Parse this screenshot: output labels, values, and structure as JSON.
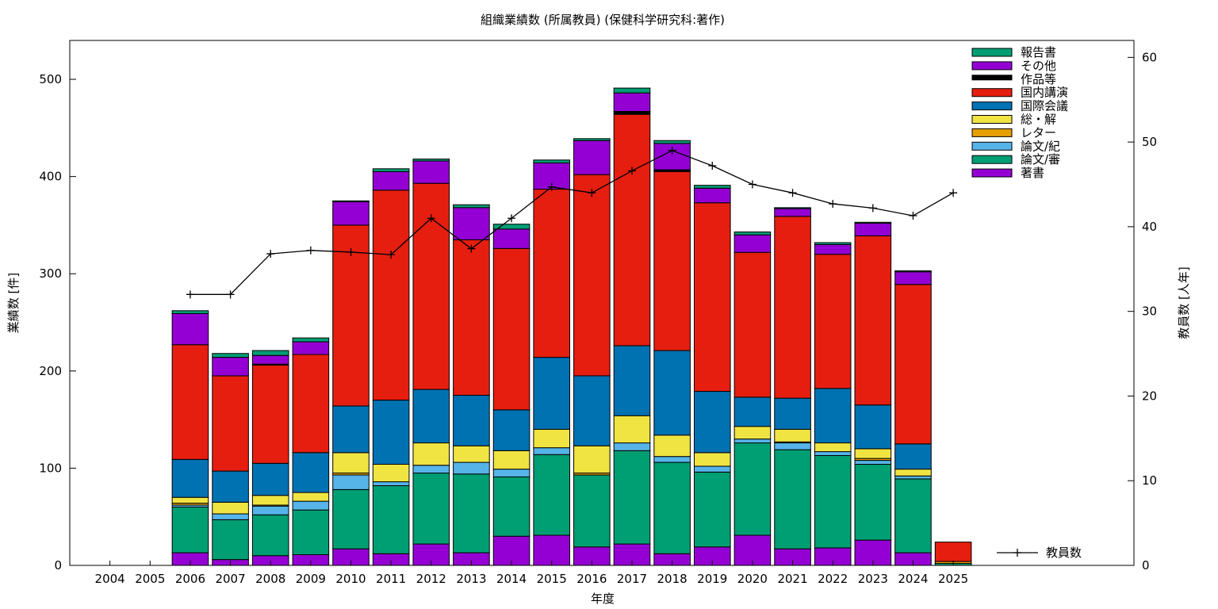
{
  "chart_data": {
    "type": "bar",
    "stacked": true,
    "title": "組織業績数 (所属教員) (保健科学研究科:著作)",
    "xlabel": "年度",
    "ylabel": "業績数 [件]",
    "y2label": "教員数 [人年]",
    "ylim": [
      0,
      540
    ],
    "y2lim": [
      0,
      62
    ],
    "yticks": [
      "0",
      "100",
      "200",
      "300",
      "400",
      "500"
    ],
    "y2ticks": [
      "0",
      "10",
      "20",
      "30",
      "40",
      "50",
      "60"
    ],
    "categories": [
      "2004",
      "2005",
      "2006",
      "2007",
      "2008",
      "2009",
      "2010",
      "2011",
      "2012",
      "2013",
      "2014",
      "2015",
      "2016",
      "2017",
      "2018",
      "2019",
      "2020",
      "2021",
      "2022",
      "2023",
      "2024",
      "2025"
    ],
    "legend_position": "top-right",
    "series": [
      {
        "name": "著書",
        "color": "#9400d3",
        "values": [
          0,
          0,
          13,
          6,
          10,
          11,
          17,
          12,
          22,
          13,
          30,
          31,
          19,
          22,
          12,
          19,
          31,
          17,
          18,
          26,
          13,
          0
        ]
      },
      {
        "name": "論文/審",
        "color": "#009e73",
        "values": [
          0,
          0,
          47,
          41,
          42,
          46,
          61,
          70,
          73,
          81,
          61,
          83,
          74,
          96,
          94,
          77,
          95,
          102,
          95,
          78,
          76,
          2
        ]
      },
      {
        "name": "論文/紀",
        "color": "#56b4e9",
        "values": [
          0,
          0,
          2,
          6,
          9,
          9,
          15,
          4,
          8,
          12,
          8,
          7,
          0,
          8,
          6,
          6,
          4,
          7,
          4,
          4,
          3,
          0
        ]
      },
      {
        "name": "レター",
        "color": "#e69f00",
        "values": [
          0,
          0,
          2,
          0,
          1,
          0,
          2,
          0,
          0,
          0,
          0,
          0,
          2,
          0,
          0,
          0,
          0,
          1,
          0,
          2,
          0,
          2
        ]
      },
      {
        "name": "総・解",
        "color": "#f0e442",
        "values": [
          0,
          0,
          6,
          12,
          10,
          9,
          21,
          18,
          23,
          17,
          19,
          19,
          28,
          28,
          22,
          14,
          13,
          13,
          9,
          10,
          7,
          0
        ]
      },
      {
        "name": "国際会議",
        "color": "#0072b2",
        "values": [
          0,
          0,
          39,
          32,
          33,
          41,
          48,
          66,
          55,
          52,
          42,
          74,
          72,
          72,
          87,
          63,
          30,
          32,
          56,
          45,
          26,
          0
        ]
      },
      {
        "name": "国内講演",
        "color": "#e51e10",
        "values": [
          0,
          0,
          118,
          98,
          101,
          101,
          186,
          216,
          212,
          160,
          166,
          173,
          207,
          238,
          184,
          194,
          149,
          187,
          138,
          174,
          164,
          20
        ]
      },
      {
        "name": "作品等",
        "color": "#000000",
        "values": [
          0,
          0,
          0,
          0,
          1,
          0,
          0,
          0,
          0,
          0,
          0,
          0,
          0,
          3,
          2,
          0,
          0,
          0,
          0,
          0,
          0,
          0
        ]
      },
      {
        "name": "その他",
        "color": "#9400d3",
        "values": [
          0,
          0,
          32,
          19,
          9,
          13,
          24,
          19,
          23,
          33,
          20,
          27,
          35,
          19,
          27,
          15,
          18,
          8,
          10,
          13,
          13,
          0
        ]
      },
      {
        "name": "報告書",
        "color": "#009e73",
        "values": [
          0,
          0,
          3,
          4,
          5,
          4,
          1,
          3,
          2,
          3,
          5,
          3,
          2,
          5,
          3,
          3,
          3,
          1,
          2,
          1,
          1,
          0
        ]
      }
    ],
    "line_series": {
      "name": "教員数",
      "color": "#000000",
      "axis": "right",
      "values": [
        null,
        null,
        32,
        32,
        36.8,
        37.2,
        37,
        36.7,
        41,
        37.4,
        41,
        44.7,
        44,
        46.6,
        49,
        47.2,
        45,
        44,
        42.7,
        42.2,
        41.3,
        44
      ]
    }
  }
}
